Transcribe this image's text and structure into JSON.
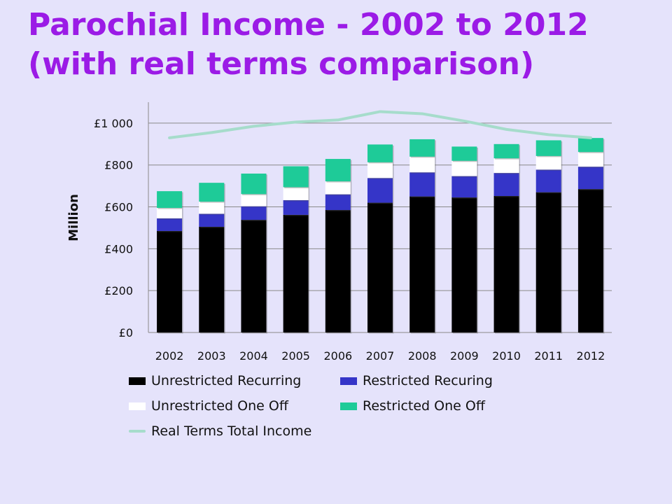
{
  "title": {
    "line1": "Parochial Income - 2002 to 2012",
    "line2": "(with real terms comparison)"
  },
  "colors": {
    "background": "#E5E3FB",
    "title": "#9B1BE6",
    "unrestricted_recurring": "#000000",
    "restricted_recurring": "#3535C8",
    "unrestricted_one_off": "#FFFFFF",
    "restricted_one_off": "#1ECB98",
    "real_terms": "#A6DCCB"
  },
  "chart_data": {
    "type": "bar",
    "stacked": true,
    "categories": [
      "2002",
      "2003",
      "2004",
      "2005",
      "2006",
      "2007",
      "2008",
      "2009",
      "2010",
      "2011",
      "2012"
    ],
    "ylabel": "Million",
    "ylim": [
      0,
      1100
    ],
    "yticks": [
      0,
      200,
      400,
      600,
      800,
      1000
    ],
    "ytick_labels": [
      "£0",
      "£200",
      "£400",
      "£600",
      "£800",
      "£1 000"
    ],
    "grid": true,
    "legend_position": "bottom",
    "series": [
      {
        "name": "Unrestricted Recurring",
        "type": "bar",
        "color": "#000000",
        "values": [
          485,
          505,
          538,
          562,
          585,
          620,
          650,
          645,
          652,
          670,
          685
        ]
      },
      {
        "name": "Restricted Recuring",
        "type": "bar",
        "color": "#3535C8",
        "values": [
          60,
          62,
          65,
          70,
          75,
          118,
          115,
          102,
          110,
          108,
          107
        ]
      },
      {
        "name": "Unrestricted One Off",
        "type": "bar",
        "color": "#FFFFFF",
        "values": [
          50,
          58,
          58,
          62,
          62,
          75,
          75,
          73,
          70,
          65,
          70
        ]
      },
      {
        "name": "Restricted One Off",
        "type": "bar",
        "color": "#1ECB98",
        "values": [
          80,
          90,
          98,
          100,
          107,
          85,
          83,
          68,
          68,
          75,
          67
        ]
      },
      {
        "name": "Real Terms Total Income",
        "type": "line",
        "color": "#A6DCCB",
        "values": [
          930,
          955,
          985,
          1005,
          1015,
          1055,
          1045,
          1010,
          970,
          945,
          930
        ]
      }
    ]
  }
}
